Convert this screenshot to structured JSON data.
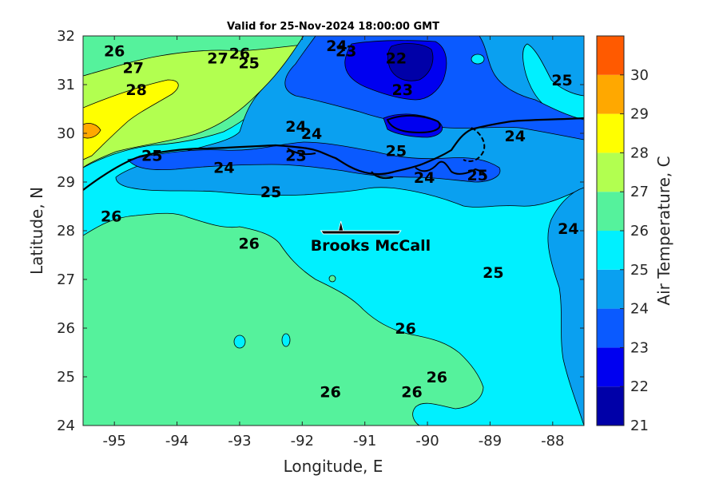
{
  "title": "Valid for 25-Nov-2024 18:00:00 GMT",
  "xaxis": {
    "label": "Longitude, E",
    "range": [
      -95.5,
      -87.5
    ],
    "ticks": [
      -95,
      -94,
      -93,
      -92,
      -91,
      -90,
      -89,
      -88
    ]
  },
  "yaxis": {
    "label": "Latitude, N",
    "range": [
      24,
      32
    ],
    "ticks": [
      24,
      25,
      26,
      27,
      28,
      29,
      30,
      31,
      32
    ]
  },
  "colorbar": {
    "label": "Air Temperature, C",
    "ticks": [
      21,
      22,
      23,
      24,
      25,
      26,
      27,
      28,
      29,
      30
    ],
    "bands": [
      {
        "from": 21,
        "to": 22,
        "color": "#0000a8"
      },
      {
        "from": 22,
        "to": 23,
        "color": "#0000f0"
      },
      {
        "from": 23,
        "to": 24,
        "color": "#0a5aff"
      },
      {
        "from": 24,
        "to": 25,
        "color": "#0aa0f0"
      },
      {
        "from": 25,
        "to": 26,
        "color": "#00f0ff"
      },
      {
        "from": 26,
        "to": 27,
        "color": "#55f29c"
      },
      {
        "from": 27,
        "to": 28,
        "color": "#b2ff50"
      },
      {
        "from": 28,
        "to": 29,
        "color": "#ffff00"
      },
      {
        "from": 29,
        "to": 30,
        "color": "#ffa800"
      },
      {
        "from": 30,
        "to": 31,
        "color": "#ff5a00"
      }
    ]
  },
  "ship": {
    "name": "Brooks McCall",
    "lon": -91.0,
    "lat": 28.0
  },
  "contour_labels": [
    {
      "text": "26",
      "lon": -95.0,
      "lat": 31.7
    },
    {
      "text": "27",
      "lon": -94.7,
      "lat": 31.35
    },
    {
      "text": "28",
      "lon": -94.65,
      "lat": 30.9
    },
    {
      "text": "27",
      "lon": -93.35,
      "lat": 31.55
    },
    {
      "text": "26",
      "lon": -93.0,
      "lat": 31.65
    },
    {
      "text": "25",
      "lon": -92.85,
      "lat": 31.45
    },
    {
      "text": "24",
      "lon": -91.45,
      "lat": 31.8
    },
    {
      "text": "23",
      "lon": -91.3,
      "lat": 31.7
    },
    {
      "text": "22",
      "lon": -90.5,
      "lat": 31.55
    },
    {
      "text": "23",
      "lon": -90.4,
      "lat": 30.9
    },
    {
      "text": "25",
      "lon": -87.85,
      "lat": 31.1
    },
    {
      "text": "24",
      "lon": -92.1,
      "lat": 30.15
    },
    {
      "text": "24",
      "lon": -91.85,
      "lat": 30.0
    },
    {
      "text": "24",
      "lon": -88.6,
      "lat": 29.95
    },
    {
      "text": "25",
      "lon": -94.4,
      "lat": 29.55
    },
    {
      "text": "24",
      "lon": -93.25,
      "lat": 29.3
    },
    {
      "text": "23",
      "lon": -92.1,
      "lat": 29.55
    },
    {
      "text": "25",
      "lon": -90.5,
      "lat": 29.65
    },
    {
      "text": "24",
      "lon": -90.05,
      "lat": 29.1
    },
    {
      "text": "25",
      "lon": -89.2,
      "lat": 29.15
    },
    {
      "text": "25",
      "lon": -92.5,
      "lat": 28.8
    },
    {
      "text": "26",
      "lon": -95.05,
      "lat": 28.3
    },
    {
      "text": "26",
      "lon": -92.85,
      "lat": 27.75
    },
    {
      "text": "24",
      "lon": -87.75,
      "lat": 28.05
    },
    {
      "text": "25",
      "lon": -88.95,
      "lat": 27.15
    },
    {
      "text": "26",
      "lon": -90.35,
      "lat": 26.0
    },
    {
      "text": "26",
      "lon": -89.85,
      "lat": 25.0
    },
    {
      "text": "26",
      "lon": -91.55,
      "lat": 24.7
    },
    {
      "text": "26",
      "lon": -90.25,
      "lat": 24.7
    }
  ]
}
